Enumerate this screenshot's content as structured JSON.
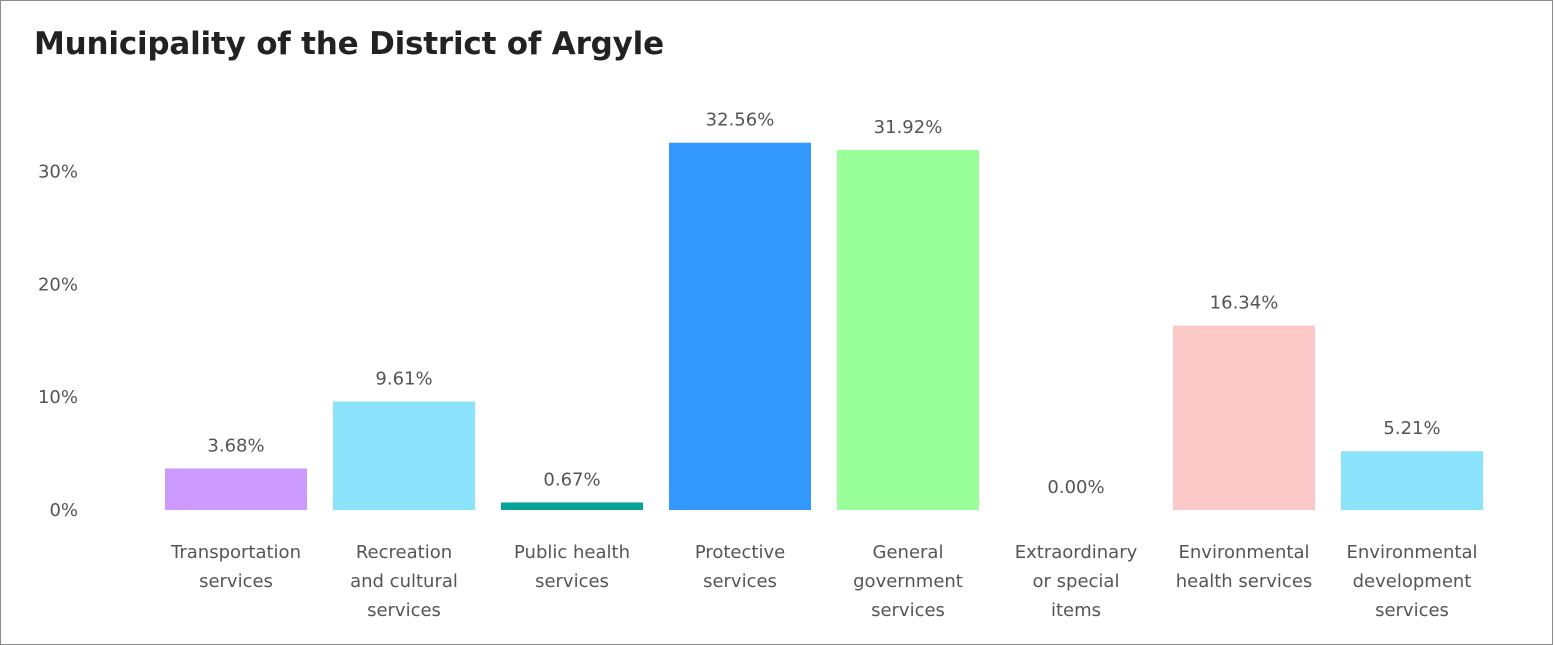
{
  "chart_data": {
    "type": "bar",
    "title": "Municipality of the District of Argyle",
    "xlabel": "",
    "ylabel": "",
    "ylim": [
      0,
      35
    ],
    "yticks": [
      {
        "value": 0,
        "label": "0%"
      },
      {
        "value": 10,
        "label": "10%"
      },
      {
        "value": 20,
        "label": "20%"
      },
      {
        "value": 30,
        "label": "30%"
      }
    ],
    "grid": false,
    "legend": "none",
    "categories": [
      [
        "Transportation",
        "services"
      ],
      [
        "Recreation",
        "and cultural",
        "services"
      ],
      [
        "Public health",
        "services"
      ],
      [
        "Protective",
        "services"
      ],
      [
        "General",
        "government",
        "services"
      ],
      [
        "Extraordinary",
        "or special",
        "items"
      ],
      [
        "Environmental",
        "health services"
      ],
      [
        "Environmental",
        "development",
        "services"
      ]
    ],
    "values": [
      3.68,
      9.61,
      0.67,
      32.56,
      31.92,
      0.0,
      16.34,
      5.21
    ],
    "data_labels": [
      "3.68%",
      "9.61%",
      "0.67%",
      "32.56%",
      "31.92%",
      "0.00%",
      "16.34%",
      "5.21%"
    ],
    "colors": [
      "#cc99ff",
      "#8ae3fb",
      "#0aa39a",
      "#3399ff",
      "#99ff99",
      "#cccccc",
      "#fcc8c8",
      "#8ae3fb"
    ]
  }
}
